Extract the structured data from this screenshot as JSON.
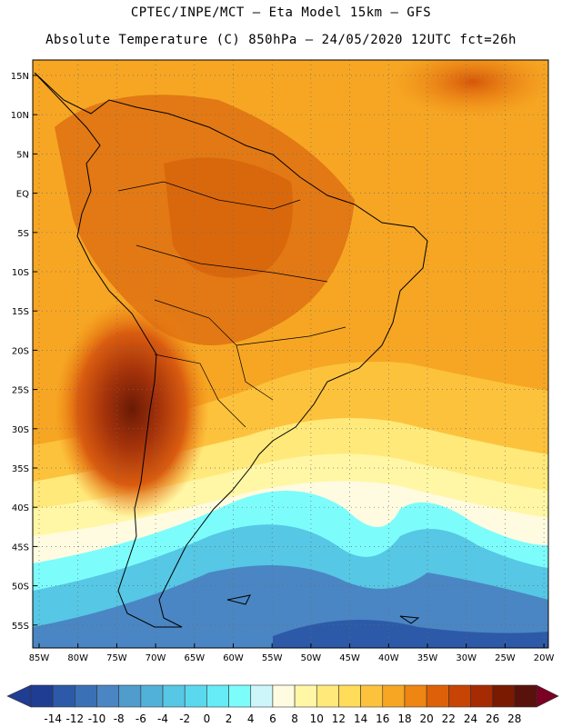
{
  "header": {
    "line1": "CPTEC/INPE/MCT –  Eta Model 15km – GFS",
    "line2": "Absolute Temperature (C) 850hPa – 24/05/2020 12UTC fct=26h"
  },
  "map": {
    "lat_labels": [
      "15N",
      "10N",
      "5N",
      "EQ",
      "5S",
      "10S",
      "15S",
      "20S",
      "25S",
      "30S",
      "35S",
      "40S",
      "45S",
      "50S",
      "55S"
    ],
    "lon_labels": [
      "85W",
      "80W",
      "75W",
      "70W",
      "65W",
      "60W",
      "55W",
      "50W",
      "45W",
      "40W",
      "35W",
      "30W",
      "25W",
      "20W"
    ]
  },
  "colorbar": {
    "labels": [
      "-14",
      "-12",
      "-10",
      "-8",
      "-6",
      "-4",
      "-2",
      "0",
      "2",
      "4",
      "6",
      "8",
      "10",
      "12",
      "14",
      "16",
      "18",
      "20",
      "22",
      "24",
      "26",
      "28"
    ],
    "colors": [
      "#1f3e93",
      "#2d5aa8",
      "#3a71b6",
      "#4a86c3",
      "#4f9ccd",
      "#52b1d9",
      "#56c7e4",
      "#5ad9ee",
      "#65ecf6",
      "#7dfcfc",
      "#cdf6fb",
      "#fffbe0",
      "#fff7a6",
      "#ffe97a",
      "#ffdc5a",
      "#fdc23c",
      "#f6a623",
      "#ef8512",
      "#de6008",
      "#c74404",
      "#a72b02",
      "#7a1a00",
      "#58110b"
    ]
  }
}
